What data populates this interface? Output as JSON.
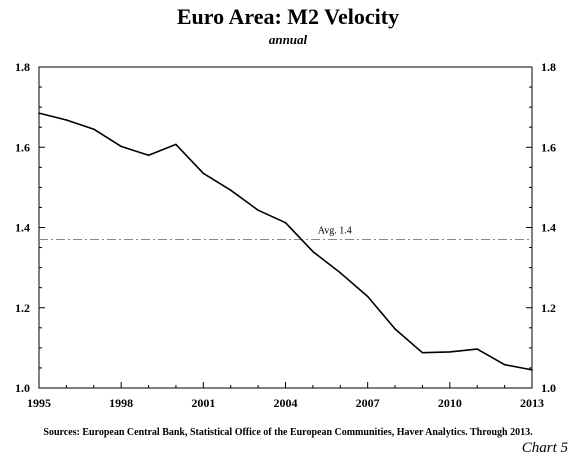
{
  "title": "Euro Area: M2 Velocity",
  "subtitle": "annual",
  "footer": "Sources: European Central Bank, Statistical Office of the European Communities, Haver Analytics. Through 2013.",
  "chart_label": "Chart 5",
  "chart_data": {
    "type": "line",
    "title": "Euro Area: M2 Velocity",
    "subtitle": "annual",
    "xlim": [
      1995,
      2013
    ],
    "ylim": [
      1.0,
      1.8
    ],
    "x_ticks": [
      "1995",
      "1998",
      "2001",
      "2004",
      "2007",
      "2010",
      "2013"
    ],
    "y_ticks": [
      "1.0",
      "1.2",
      "1.4",
      "1.6",
      "1.8"
    ],
    "grid": false,
    "series": [
      {
        "x": [
          1995,
          1996,
          1997,
          1998,
          1999,
          2000,
          2001,
          2002,
          2003,
          2004,
          2005,
          2006,
          2007,
          2008,
          2009,
          2010,
          2011,
          2012,
          2013
        ],
        "values": [
          1.685,
          1.668,
          1.645,
          1.602,
          1.58,
          1.607,
          1.535,
          1.493,
          1.443,
          1.412,
          1.34,
          1.287,
          1.228,
          1.147,
          1.088,
          1.09,
          1.097,
          1.058,
          1.045
        ],
        "color": "#000000"
      }
    ],
    "reference_line": {
      "value": 1.37,
      "label": "Avg. 1.4",
      "style": "dash-dot",
      "color": "#888888"
    }
  }
}
